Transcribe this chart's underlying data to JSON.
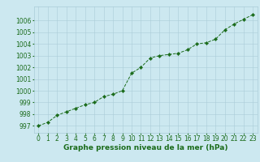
{
  "x": [
    0,
    1,
    2,
    3,
    4,
    5,
    6,
    7,
    8,
    9,
    10,
    11,
    12,
    13,
    14,
    15,
    16,
    17,
    18,
    19,
    20,
    21,
    22,
    23
  ],
  "y": [
    997.0,
    997.3,
    997.9,
    998.2,
    998.5,
    998.8,
    999.0,
    999.5,
    999.7,
    1000.0,
    1001.5,
    1002.0,
    1002.8,
    1003.0,
    1003.1,
    1003.2,
    1003.5,
    1004.0,
    1004.1,
    1004.4,
    1005.2,
    1005.7,
    1006.1,
    1006.5
  ],
  "line_color": "#1a6b1a",
  "marker": "D",
  "marker_size": 2.2,
  "bg_color": "#cce8f0",
  "grid_color": "#aaccd8",
  "xlabel": "Graphe pression niveau de la mer (hPa)",
  "xlabel_color": "#1a6b1a",
  "xlabel_fontsize": 6.5,
  "tick_color": "#1a6b1a",
  "tick_fontsize": 5.5,
  "ylim": [
    996.4,
    1007.2
  ],
  "xlim": [
    -0.5,
    23.5
  ],
  "yticks": [
    997,
    998,
    999,
    1000,
    1001,
    1002,
    1003,
    1004,
    1005,
    1006
  ],
  "xticks": [
    0,
    1,
    2,
    3,
    4,
    5,
    6,
    7,
    8,
    9,
    10,
    11,
    12,
    13,
    14,
    15,
    16,
    17,
    18,
    19,
    20,
    21,
    22,
    23
  ]
}
